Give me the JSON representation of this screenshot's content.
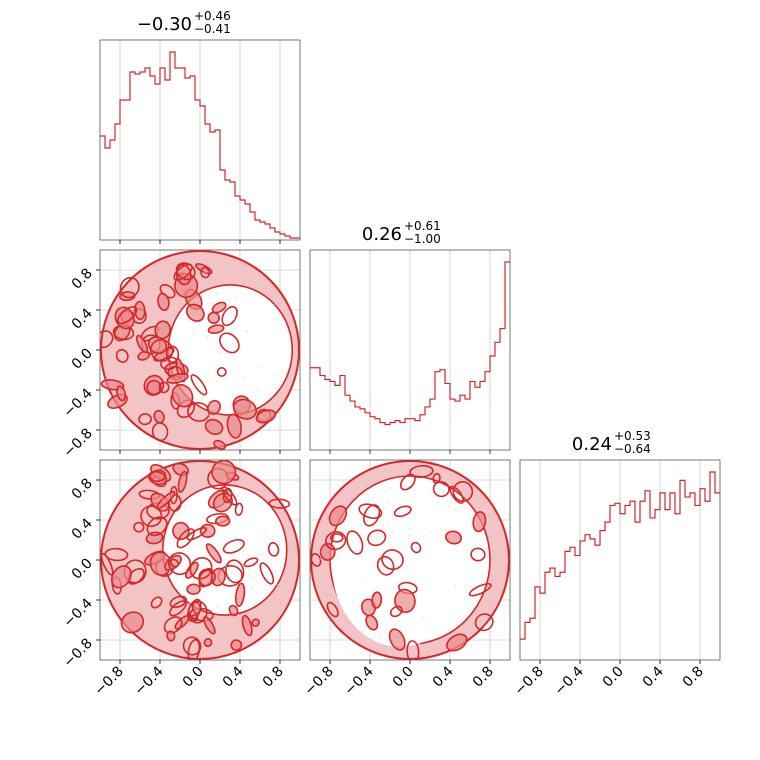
{
  "colors": {
    "series": "#d62728",
    "fill_light": "#f3c4c5",
    "fill_mid": "#e88a8c",
    "grid": "#cccccc",
    "axis": "#555555"
  },
  "chart_data": {
    "type": "corner",
    "parameters": [
      "p0",
      "p1",
      "p2"
    ],
    "tick_labels": [
      "−0.8",
      "−0.4",
      "0.0",
      "0.4",
      "0.8"
    ],
    "tick_values": [
      -0.8,
      -0.4,
      0.0,
      0.4,
      0.8
    ],
    "range": [
      -1.0,
      1.0
    ],
    "grid": true,
    "titles": [
      {
        "median": "−0.30",
        "plus": "+0.46",
        "minus": "−0.41"
      },
      {
        "median": "0.26",
        "plus": "+0.61",
        "minus": "−1.00"
      },
      {
        "median": "0.24",
        "plus": "+0.53",
        "minus": "−0.64"
      }
    ],
    "histograms": [
      {
        "param": "p0",
        "bin_edges_from": -1.0,
        "bin_width": 0.05,
        "counts": [
          0.52,
          0.46,
          0.5,
          0.58,
          0.7,
          0.7,
          0.84,
          0.83,
          0.84,
          0.86,
          0.82,
          0.78,
          0.86,
          0.8,
          0.94,
          0.86,
          0.86,
          0.81,
          0.82,
          0.7,
          0.67,
          0.58,
          0.54,
          0.55,
          0.35,
          0.3,
          0.29,
          0.22,
          0.2,
          0.18,
          0.14,
          0.1,
          0.09,
          0.08,
          0.06,
          0.04,
          0.03,
          0.02,
          0.01,
          0.01
        ]
      },
      {
        "param": "p1",
        "bin_edges_from": -1.0,
        "bin_width": 0.05,
        "counts": [
          0.42,
          0.42,
          0.38,
          0.36,
          0.35,
          0.33,
          0.38,
          0.28,
          0.25,
          0.22,
          0.21,
          0.19,
          0.17,
          0.16,
          0.14,
          0.13,
          0.14,
          0.15,
          0.14,
          0.16,
          0.16,
          0.15,
          0.18,
          0.22,
          0.26,
          0.4,
          0.41,
          0.34,
          0.26,
          0.25,
          0.28,
          0.26,
          0.35,
          0.32,
          0.35,
          0.4,
          0.48,
          0.55,
          0.62,
          0.96
        ]
      },
      {
        "param": "p2",
        "bin_edges_from": -1.0,
        "bin_width": 0.05,
        "counts": [
          0.1,
          0.18,
          0.2,
          0.35,
          0.32,
          0.42,
          0.44,
          0.4,
          0.42,
          0.52,
          0.54,
          0.5,
          0.57,
          0.6,
          0.58,
          0.55,
          0.62,
          0.66,
          0.74,
          0.75,
          0.7,
          0.74,
          0.76,
          0.66,
          0.76,
          0.81,
          0.68,
          0.72,
          0.8,
          0.72,
          0.8,
          0.7,
          0.86,
          0.78,
          0.8,
          0.74,
          0.82,
          0.76,
          0.9,
          0.8
        ]
      }
    ],
    "contour_panels": [
      {
        "x": "p0",
        "y": "p1",
        "support": "disk"
      },
      {
        "x": "p0",
        "y": "p2",
        "support": "disk"
      },
      {
        "x": "p1",
        "y": "p2",
        "support": "disk"
      }
    ]
  }
}
